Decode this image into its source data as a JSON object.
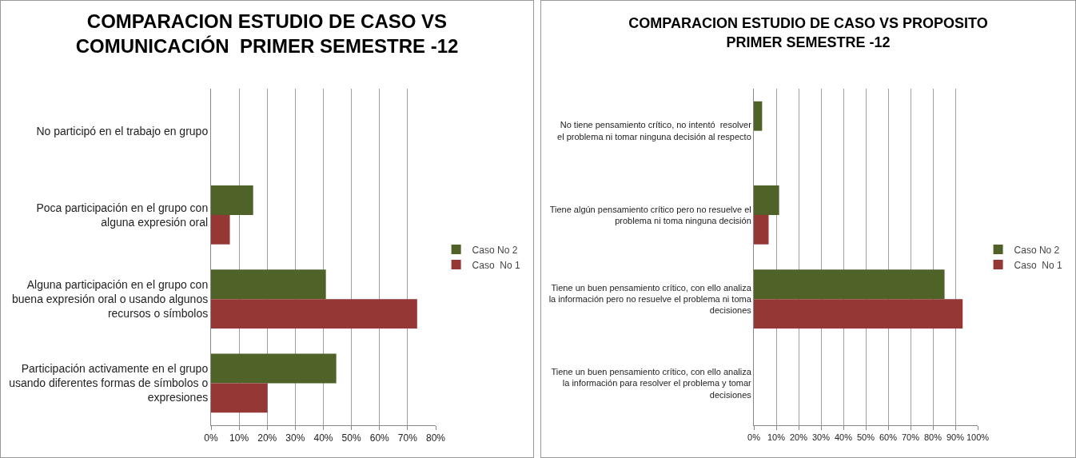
{
  "chart_data": [
    {
      "type": "bar",
      "orientation": "horizontal",
      "title": "COMPARACION ESTUDIO DE CASO VS COMUNICACIÓN  PRIMER SEMESTRE -12",
      "categories": [
        "No participó en el trabajo en grupo",
        "Poca participación en el grupo con alguna expresión oral",
        "Alguna participación en el grupo con buena expresión oral o usando algunos recursos o símbolos",
        "Participación activamente en el grupo usando diferentes formas de símbolos o expresiones"
      ],
      "series": [
        {
          "name": "Caso No 2",
          "color": "#4f6228",
          "values": [
            0,
            15,
            40.9,
            44.6
          ]
        },
        {
          "name": "Caso  No 1",
          "color": "#953735",
          "values": [
            0,
            6.7,
            73.4,
            20.1
          ]
        }
      ],
      "xlim": [
        0,
        80
      ],
      "xticks": [
        {
          "value": 0,
          "label": "0%"
        },
        {
          "value": 10,
          "label": "10%"
        },
        {
          "value": 20,
          "label": "20%"
        },
        {
          "value": 30,
          "label": "30%"
        },
        {
          "value": 40,
          "label": "40%"
        },
        {
          "value": 50,
          "label": "50%"
        },
        {
          "value": 60,
          "label": "60%"
        },
        {
          "value": 70,
          "label": "70%"
        },
        {
          "value": 80,
          "label": "80%"
        }
      ],
      "grid": "x",
      "legend": "right"
    },
    {
      "type": "bar",
      "orientation": "horizontal",
      "title": "COMPARACION ESTUDIO DE CASO VS PROPOSITO PRIMER SEMESTRE -12",
      "categories": [
        "No tiene pensamiento crítico, no intentó  resolver el problema ni tomar ninguna decisión al respecto",
        "Tiene algún pensamiento crítico pero no resuelve el problema ni toma ninguna decisión",
        "Tiene un buen pensamiento crítico, con ello analiza la información pero no resuelve el problema ni toma decisiones",
        "Tiene un buen pensamiento crítico, con ello analiza la información para resolver el problema y tomar decisiones"
      ],
      "series": [
        {
          "name": "Caso No 2",
          "color": "#4f6228",
          "values": [
            3.7,
            11.3,
            85.2,
            0
          ]
        },
        {
          "name": "Caso  No 1",
          "color": "#953735",
          "values": [
            0,
            6.6,
            93.3,
            0
          ]
        }
      ],
      "xlim": [
        0,
        100
      ],
      "xticks": [
        {
          "value": 0,
          "label": "0%"
        },
        {
          "value": 10,
          "label": "10%"
        },
        {
          "value": 20,
          "label": "20%"
        },
        {
          "value": 30,
          "label": "30%"
        },
        {
          "value": 40,
          "label": "40%"
        },
        {
          "value": 50,
          "label": "50%"
        },
        {
          "value": 60,
          "label": "60%"
        },
        {
          "value": 70,
          "label": "70%"
        },
        {
          "value": 80,
          "label": "80%"
        },
        {
          "value": 90,
          "label": "90%"
        },
        {
          "value": 100,
          "label": "100%"
        }
      ],
      "grid": "x",
      "legend": "right"
    }
  ]
}
